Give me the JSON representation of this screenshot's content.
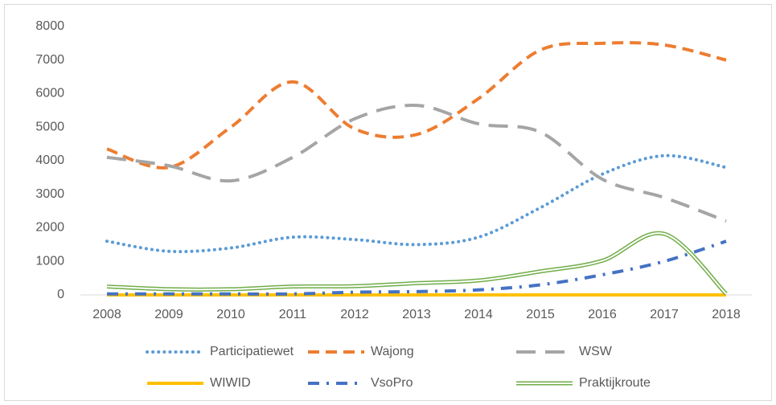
{
  "chart_data": {
    "type": "line",
    "x": [
      2008,
      2009,
      2010,
      2011,
      2012,
      2013,
      2014,
      2015,
      2016,
      2017,
      2018
    ],
    "series": [
      {
        "name": "Participatiewet",
        "color": "#5b9bd5",
        "values": [
          1600,
          1300,
          1400,
          1720,
          1650,
          1500,
          1720,
          2600,
          3600,
          4150,
          3800
        ]
      },
      {
        "name": "Wajong",
        "color": "#ed7d31",
        "values": [
          4350,
          3800,
          5000,
          6350,
          4950,
          4780,
          5850,
          7300,
          7500,
          7450,
          7000
        ]
      },
      {
        "name": "WSW",
        "color": "#a5a5a5",
        "values": [
          4100,
          3850,
          3400,
          4100,
          5250,
          5650,
          5100,
          4850,
          3450,
          2900,
          2200
        ]
      },
      {
        "name": "WIWID",
        "color": "#ffc000",
        "values": [
          0,
          0,
          0,
          0,
          0,
          0,
          0,
          0,
          0,
          0,
          0
        ]
      },
      {
        "name": "VsoPro",
        "color": "#4472c4",
        "values": [
          30,
          30,
          30,
          30,
          80,
          100,
          150,
          300,
          600,
          1000,
          1600
        ]
      },
      {
        "name": "Praktijkroute",
        "color": "#70ad47",
        "values": [
          250,
          170,
          170,
          250,
          260,
          350,
          430,
          700,
          1020,
          1820,
          30
        ]
      }
    ],
    "xlim": [
      2008,
      2018
    ],
    "ylim": [
      0,
      8000
    ],
    "yticks": [
      0,
      1000,
      2000,
      3000,
      4000,
      5000,
      6000,
      7000,
      8000
    ],
    "grid": false,
    "legend": "bottom"
  }
}
